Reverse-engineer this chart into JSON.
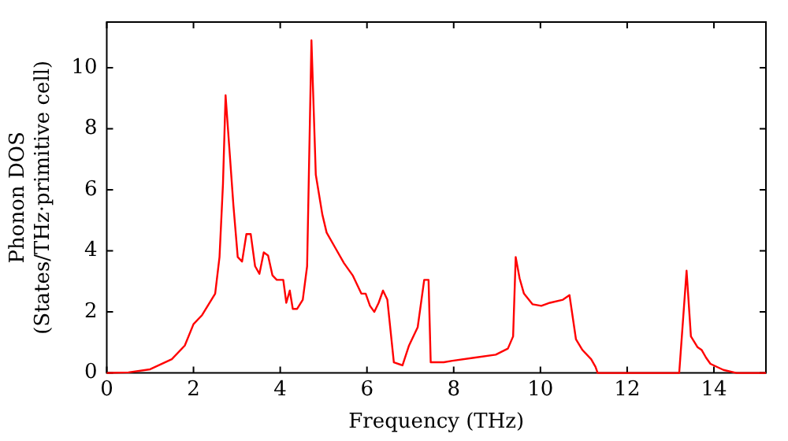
{
  "chart_data": {
    "type": "line",
    "xlabel": "Frequency (THz)",
    "ylabel": "Phonon DOS\n(States/THz·primitive cell)",
    "xlim": [
      0,
      15.2
    ],
    "xticks": [
      0,
      2,
      4,
      6,
      8,
      10,
      12,
      14
    ],
    "ylim": [
      0,
      11.5
    ],
    "yticks": [
      0,
      2,
      4,
      6,
      8,
      10
    ],
    "grid": false,
    "legend": false,
    "marker": "none",
    "line_style": "solid",
    "series": [
      {
        "color": "#ff0000",
        "x": [
          0,
          0.5,
          1,
          1.5,
          1.8,
          2,
          2.2,
          2.5,
          2.6,
          2.68,
          2.74,
          2.82,
          2.92,
          3.02,
          3.12,
          3.22,
          3.32,
          3.42,
          3.52,
          3.62,
          3.72,
          3.82,
          3.92,
          4.07,
          4.14,
          4.22,
          4.29,
          4.39,
          4.52,
          4.62,
          4.72,
          4.82,
          4.97,
          5.07,
          5.27,
          5.47,
          5.67,
          5.87,
          5.97,
          6.07,
          6.17,
          6.27,
          6.37,
          6.47,
          6.62,
          6.82,
          6.97,
          7.17,
          7.32,
          7.42,
          7.47,
          7.77,
          7.97,
          8.47,
          8.97,
          9.25,
          9.37,
          9.43,
          9.52,
          9.62,
          9.82,
          10.02,
          10.22,
          10.52,
          10.67,
          10.82,
          10.97,
          11.17,
          11.27,
          11.32,
          13.2,
          13.37,
          13.47,
          13.62,
          13.72,
          13.82,
          13.92,
          14.22,
          14.52,
          15.2
        ],
        "values": [
          0,
          0.02,
          0.12,
          0.45,
          0.9,
          1.6,
          1.9,
          2.6,
          3.8,
          6.2,
          9.1,
          7.5,
          5.5,
          3.8,
          3.65,
          4.55,
          4.55,
          3.5,
          3.25,
          3.95,
          3.85,
          3.2,
          3.05,
          3.05,
          2.3,
          2.7,
          2.1,
          2.1,
          2.4,
          3.5,
          10.9,
          6.5,
          5.2,
          4.6,
          4.1,
          3.6,
          3.2,
          2.6,
          2.6,
          2.2,
          2.0,
          2.3,
          2.7,
          2.4,
          0.35,
          0.25,
          0.9,
          1.5,
          3.05,
          3.05,
          0.35,
          0.35,
          0.4,
          0.5,
          0.6,
          0.8,
          1.2,
          3.8,
          3.1,
          2.6,
          2.25,
          2.2,
          2.3,
          2.4,
          2.55,
          1.1,
          0.75,
          0.45,
          0.2,
          0,
          0,
          3.35,
          1.2,
          0.85,
          0.75,
          0.5,
          0.3,
          0.1,
          0,
          0
        ]
      }
    ]
  }
}
